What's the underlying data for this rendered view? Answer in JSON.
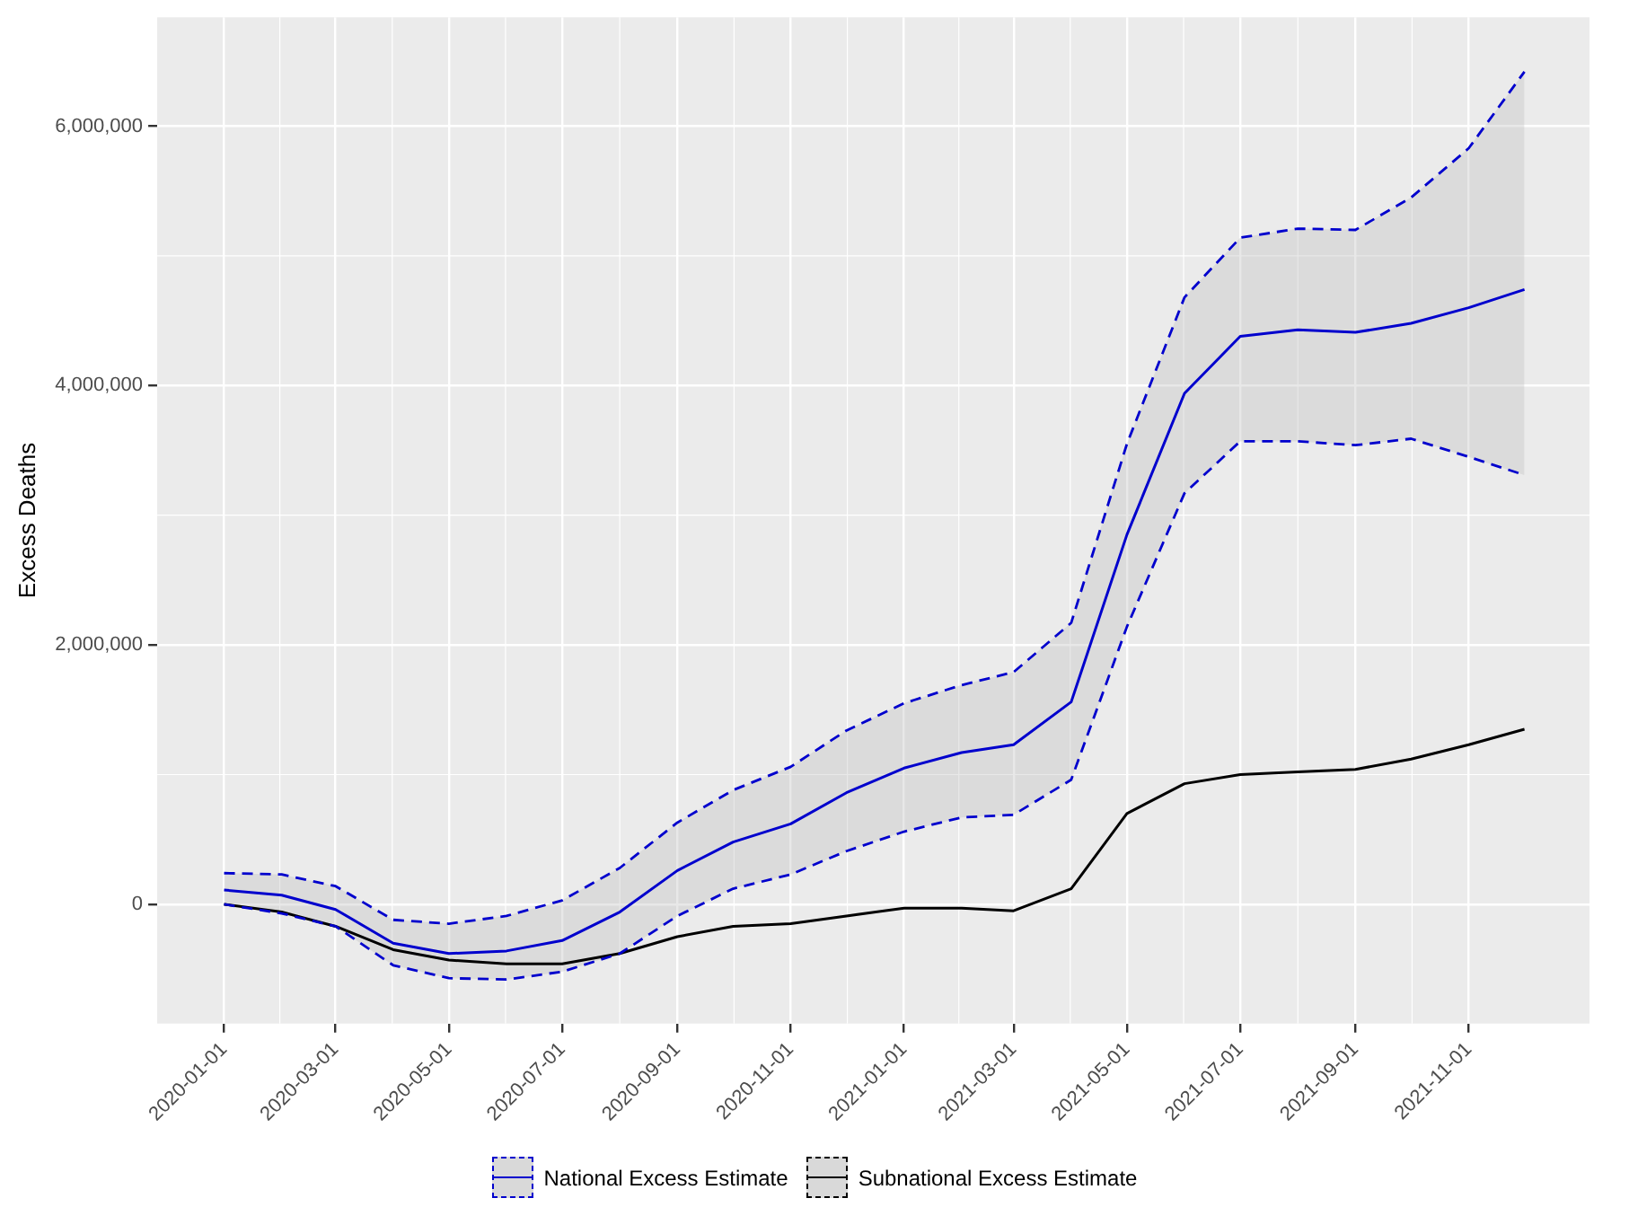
{
  "chart_data": {
    "type": "line",
    "ylabel": "Excess Deaths",
    "x": [
      "2020-01-01",
      "2020-02-01",
      "2020-03-01",
      "2020-04-01",
      "2020-05-01",
      "2020-06-01",
      "2020-07-01",
      "2020-08-01",
      "2020-09-01",
      "2020-10-01",
      "2020-11-01",
      "2020-12-01",
      "2021-01-01",
      "2021-02-01",
      "2021-03-01",
      "2021-04-01",
      "2021-05-01",
      "2021-06-01",
      "2021-07-01",
      "2021-08-01",
      "2021-09-01",
      "2021-10-01",
      "2021-11-01",
      "2021-12-01"
    ],
    "series": [
      {
        "name": "National Excess Estimate",
        "color": "#0000cd",
        "values": [
          110000,
          70000,
          -40000,
          -300000,
          -380000,
          -360000,
          -280000,
          -60000,
          260000,
          480000,
          620000,
          860000,
          1050000,
          1170000,
          1230000,
          1560000,
          2850000,
          3940000,
          4380000,
          4430000,
          4410000,
          4480000,
          4600000,
          4740000
        ],
        "lower": [
          0,
          -70000,
          -170000,
          -470000,
          -570000,
          -580000,
          -520000,
          -380000,
          -90000,
          120000,
          230000,
          410000,
          560000,
          670000,
          690000,
          960000,
          2140000,
          3170000,
          3570000,
          3570000,
          3540000,
          3590000,
          3450000,
          3310000
        ],
        "upper": [
          240000,
          230000,
          140000,
          -120000,
          -150000,
          -90000,
          30000,
          280000,
          630000,
          880000,
          1060000,
          1340000,
          1550000,
          1690000,
          1790000,
          2170000,
          3550000,
          4680000,
          5140000,
          5210000,
          5200000,
          5450000,
          5830000,
          6420000
        ]
      },
      {
        "color": "#0000cd",
        "line_style": "dashed",
        "values": [
          240000,
          230000,
          140000,
          -120000,
          -150000,
          -90000,
          30000,
          280000,
          630000,
          880000,
          1060000,
          1340000,
          1550000,
          1690000,
          1790000,
          2170000,
          3550000,
          4680000,
          5140000,
          5210000,
          5200000,
          5450000,
          5830000,
          6420000
        ]
      },
      {
        "color": "#0000cd",
        "line_style": "dashed",
        "values": [
          0,
          -70000,
          -170000,
          -470000,
          -570000,
          -580000,
          -520000,
          -380000,
          -90000,
          120000,
          230000,
          410000,
          560000,
          670000,
          690000,
          960000,
          2140000,
          3170000,
          3570000,
          3570000,
          3540000,
          3590000,
          3450000,
          3310000
        ]
      },
      {
        "name": "Subnational Excess Estimate",
        "color": "#000000",
        "values": [
          0,
          -60000,
          -170000,
          -350000,
          -430000,
          -460000,
          -460000,
          -380000,
          -250000,
          -170000,
          -150000,
          -90000,
          -30000,
          -30000,
          -50000,
          120000,
          700000,
          930000,
          1000000,
          1020000,
          1040000,
          1120000,
          1230000,
          1350000
        ]
      }
    ],
    "xlim": [
      "2019-11-26",
      "2022-01-05"
    ],
    "xticks": [
      "2020-01-01",
      "2020-03-01",
      "2020-05-01",
      "2020-07-01",
      "2020-09-01",
      "2020-11-01",
      "2021-01-01",
      "2021-03-01",
      "2021-05-01",
      "2021-07-01",
      "2021-09-01",
      "2021-11-01"
    ],
    "ylim": [
      -920000,
      6840000
    ],
    "yticks": [
      {
        "value": 0,
        "label": "0"
      },
      {
        "value": 2000000,
        "label": "2,000,000"
      },
      {
        "value": 4000000,
        "label": "4,000,000"
      },
      {
        "value": 6000000,
        "label": "6,000,000"
      }
    ],
    "grid": true,
    "legend": "bottom",
    "line_style": "solid",
    "marker": "none"
  }
}
